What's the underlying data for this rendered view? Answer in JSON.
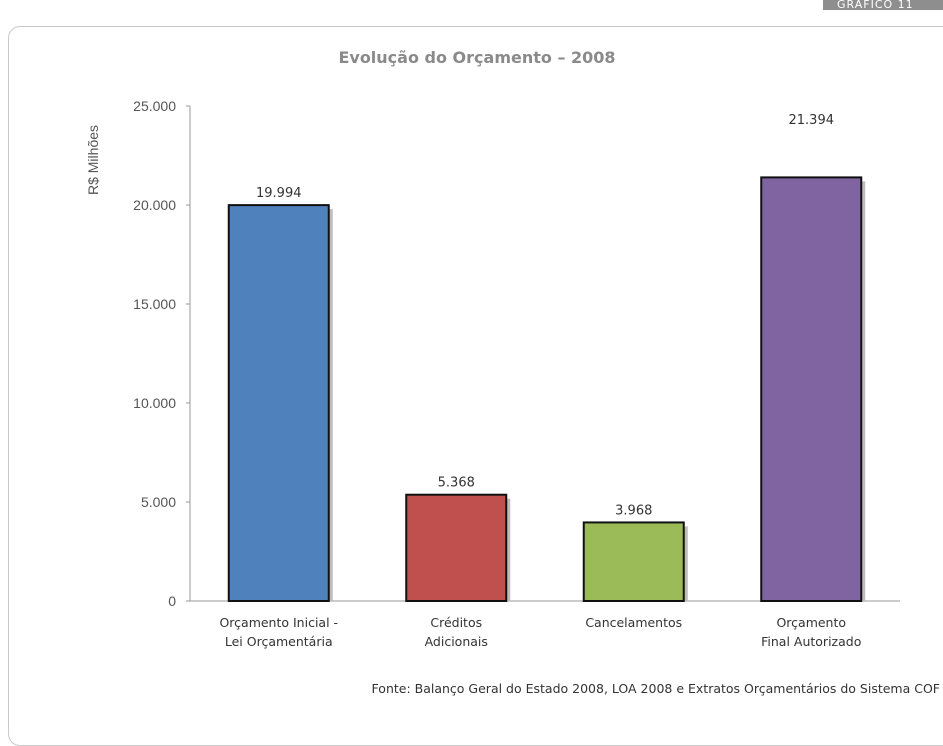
{
  "corner_tag": "GRÁFICO 11",
  "source_note": "Fonte: Balanço Geral do Estado 2008, LOA 2008 e Extratos Orçamentários do Sistema COF",
  "chart_data": {
    "type": "bar",
    "title": "Evolução do Orçamento – 2008",
    "ylabel": "R$ Milhões",
    "xlabel": "",
    "ylim": [
      0,
      25000
    ],
    "yticks": [
      0,
      5000,
      10000,
      15000,
      20000,
      25000
    ],
    "ytick_labels": [
      "0",
      "5.000",
      "10.000",
      "15.000",
      "20.000",
      "25.000"
    ],
    "grid": false,
    "categories": [
      [
        "Orçamento Inicial -",
        "Lei Orçamentária"
      ],
      [
        "Créditos",
        "Adicionais"
      ],
      [
        "Cancelamentos"
      ],
      [
        "Orçamento",
        "Final Autorizado"
      ]
    ],
    "values": [
      19994,
      5368,
      3968,
      21394
    ],
    "value_labels": [
      "19.994",
      "5.368",
      "3.968",
      "21.394"
    ],
    "colors": [
      "#4f81bd",
      "#c0504d",
      "#9bbb59",
      "#8064a2"
    ]
  }
}
